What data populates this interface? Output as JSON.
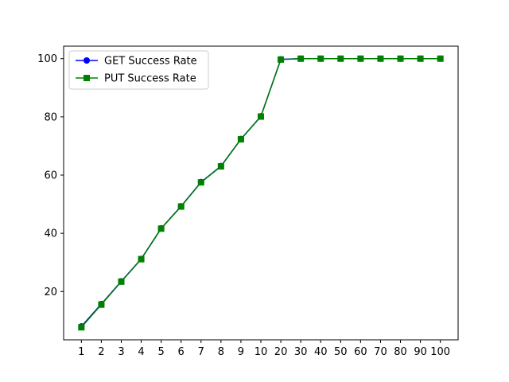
{
  "chart_data": {
    "type": "line",
    "title": "",
    "xlabel": "",
    "ylabel": "",
    "categories": [
      "1",
      "2",
      "3",
      "4",
      "5",
      "6",
      "7",
      "8",
      "9",
      "10",
      "20",
      "30",
      "40",
      "50",
      "60",
      "70",
      "80",
      "90",
      "100"
    ],
    "ylim": [
      3.4,
      104.3
    ],
    "yticks": [
      20,
      40,
      60,
      80,
      100
    ],
    "grid": false,
    "legend_position": "top-left",
    "series": [
      {
        "name": "GET Success Rate",
        "color": "#0000ff",
        "marker": "circle",
        "values": [
          8.0,
          15.7,
          23.5,
          31.2,
          41.7,
          49.3,
          57.6,
          63.1,
          72.4,
          80.2,
          99.8,
          100,
          100,
          100,
          100,
          100,
          100,
          100,
          100
        ]
      },
      {
        "name": "PUT Success Rate",
        "color": "#008000",
        "marker": "square",
        "values": [
          7.7,
          15.5,
          23.4,
          31.1,
          41.6,
          49.2,
          57.5,
          63.0,
          72.3,
          80.1,
          99.7,
          100,
          100,
          100,
          100,
          100,
          100,
          100,
          100
        ]
      }
    ]
  }
}
